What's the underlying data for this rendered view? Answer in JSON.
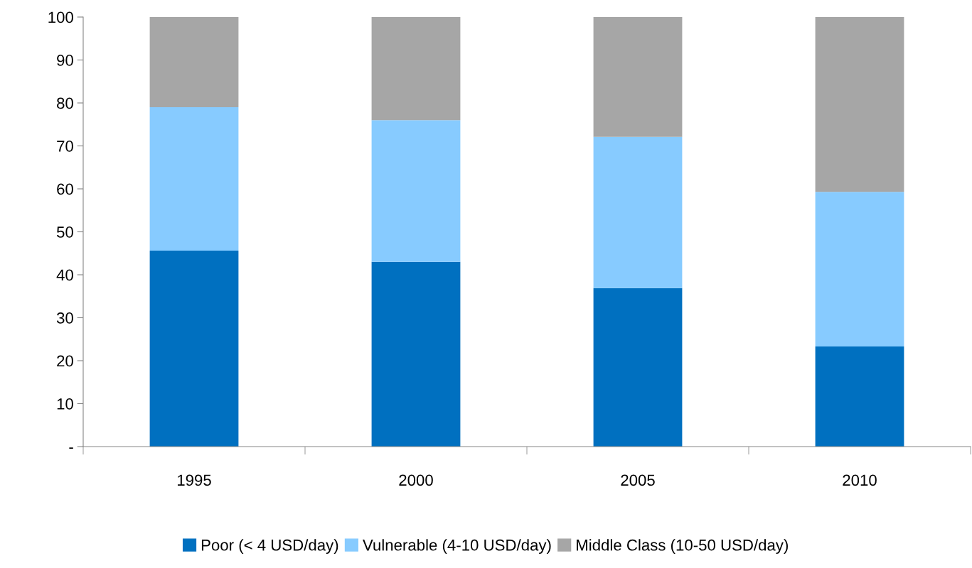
{
  "chart_data": {
    "type": "bar",
    "stacked": true,
    "categories": [
      "1995",
      "2000",
      "2005",
      "2010"
    ],
    "series": [
      {
        "name": "Poor (< 4 USD/day)",
        "color": "#0070c0",
        "values": [
          45.6,
          43.0,
          36.9,
          23.3
        ]
      },
      {
        "name": "Vulnerable (4-10 USD/day)",
        "color": "#87cbff",
        "values": [
          33.4,
          33.0,
          35.2,
          36.0
        ]
      },
      {
        "name": "Middle Class (10-50 USD/day)",
        "color": "#a6a6a6",
        "values": [
          21.0,
          24.0,
          27.9,
          40.7
        ]
      }
    ],
    "ylim": [
      0,
      100
    ],
    "yticks": [
      {
        "value": 0,
        "label": "-"
      },
      10,
      20,
      30,
      40,
      50,
      60,
      70,
      80,
      90,
      100
    ],
    "grid": false,
    "legend": "bottom"
  }
}
